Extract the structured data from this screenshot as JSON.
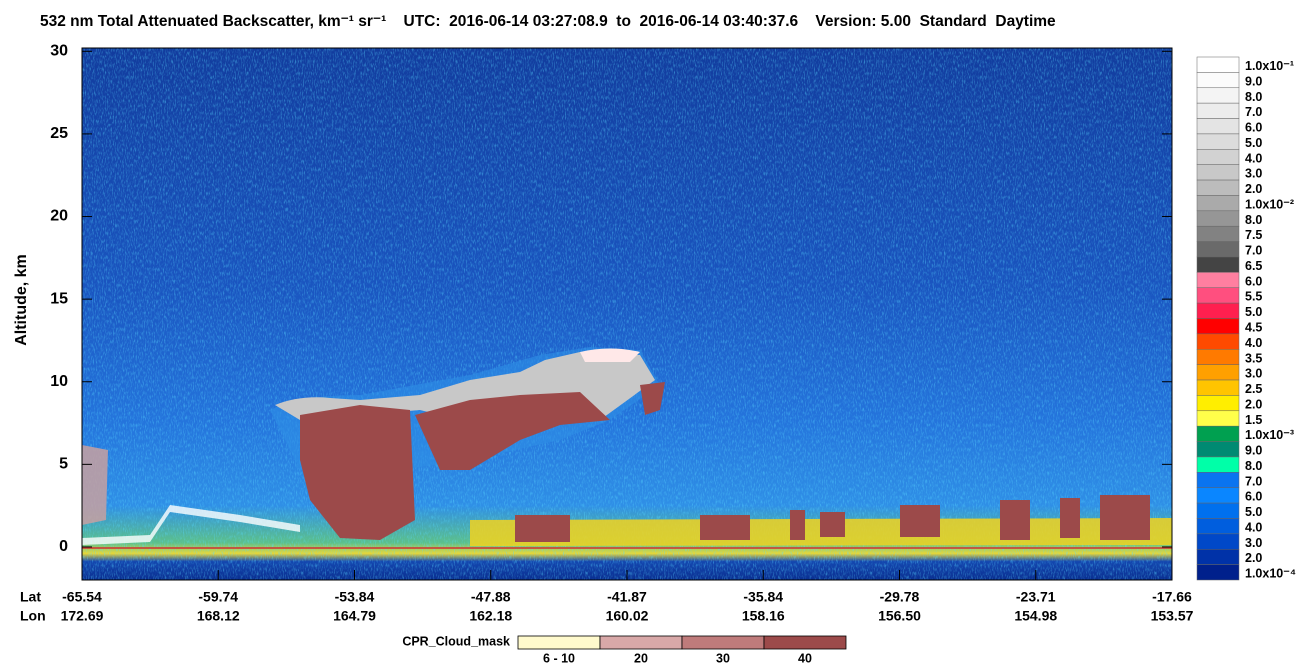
{
  "chart_data": {
    "type": "curtain",
    "title": "532 nm Total Attenuated Backscatter, km⁻¹ sr⁻¹    UTC:  2016-06-14 03:27:08.9  to  2016-06-14 03:40:37.6    Version: 5.00  Standard  Daytime",
    "y_label": "Altitude, km",
    "ylim": [
      -2,
      30.2
    ],
    "yticks": [
      0,
      5,
      10,
      15,
      20,
      25,
      30
    ],
    "x_rows": [
      {
        "name": "Lat",
        "values": [
          -65.54,
          -59.74,
          -53.84,
          -47.88,
          -41.87,
          -35.84,
          -29.78,
          -23.71,
          -17.66
        ]
      },
      {
        "name": "Lon",
        "values": [
          172.69,
          168.12,
          164.79,
          162.18,
          160.02,
          158.16,
          156.5,
          154.98,
          153.57
        ],
        "value_labels": [
          "172.69",
          "168.12",
          "164.79",
          "162.18",
          "160.02",
          "158.16",
          "156.50",
          "154.98",
          "153.57"
        ]
      }
    ],
    "colorbar": [
      {
        "label": "1.0x10⁻¹",
        "color": "#ffffff"
      },
      {
        "label": "9.0",
        "color": "#fbfbfb"
      },
      {
        "label": "8.0",
        "color": "#f4f4f4"
      },
      {
        "label": "7.0",
        "color": "#ececec"
      },
      {
        "label": "6.0",
        "color": "#e4e4e4"
      },
      {
        "label": "5.0",
        "color": "#dcdcdc"
      },
      {
        "label": "4.0",
        "color": "#d2d2d2"
      },
      {
        "label": "3.0",
        "color": "#c8c8c8"
      },
      {
        "label": "2.0",
        "color": "#bcbcbc"
      },
      {
        "label": "1.0x10⁻²",
        "color": "#aaaaaa"
      },
      {
        "label": "8.0",
        "color": "#969696"
      },
      {
        "label": "7.5",
        "color": "#828282"
      },
      {
        "label": "7.0",
        "color": "#6a6a6a"
      },
      {
        "label": "6.5",
        "color": "#444444"
      },
      {
        "label": "6.0",
        "color": "#ff7fa0"
      },
      {
        "label": "5.5",
        "color": "#ff4f7f"
      },
      {
        "label": "5.0",
        "color": "#ff1f4f"
      },
      {
        "label": "4.5",
        "color": "#ff0000"
      },
      {
        "label": "4.0",
        "color": "#ff4a00"
      },
      {
        "label": "3.5",
        "color": "#ff7a00"
      },
      {
        "label": "3.0",
        "color": "#ffa000"
      },
      {
        "label": "2.5",
        "color": "#ffc400"
      },
      {
        "label": "2.0",
        "color": "#ffee00"
      },
      {
        "label": "1.5",
        "color": "#ffff4a"
      },
      {
        "label": "1.0x10⁻³",
        "color": "#00a050"
      },
      {
        "label": "9.0",
        "color": "#008a72"
      },
      {
        "label": "8.0",
        "color": "#00ffa8"
      },
      {
        "label": "7.0",
        "color": "#0a74f0"
      },
      {
        "label": "6.0",
        "color": "#0a86ff"
      },
      {
        "label": "5.0",
        "color": "#0070ee"
      },
      {
        "label": "4.0",
        "color": "#005ede"
      },
      {
        "label": "3.0",
        "color": "#0048c8"
      },
      {
        "label": "2.0",
        "color": "#0032a8"
      },
      {
        "label": "1.0x10⁻⁴",
        "color": "#00208c"
      }
    ],
    "cpr_legend": {
      "title": "CPR_Cloud_mask",
      "items": [
        {
          "label": "6 - 10",
          "color": "#fffacd"
        },
        {
          "label": "20",
          "color": "#d8a8a8"
        },
        {
          "label": "30",
          "color": "#bf7b7b"
        },
        {
          "label": "40",
          "color": "#9c4a4a"
        }
      ]
    }
  }
}
